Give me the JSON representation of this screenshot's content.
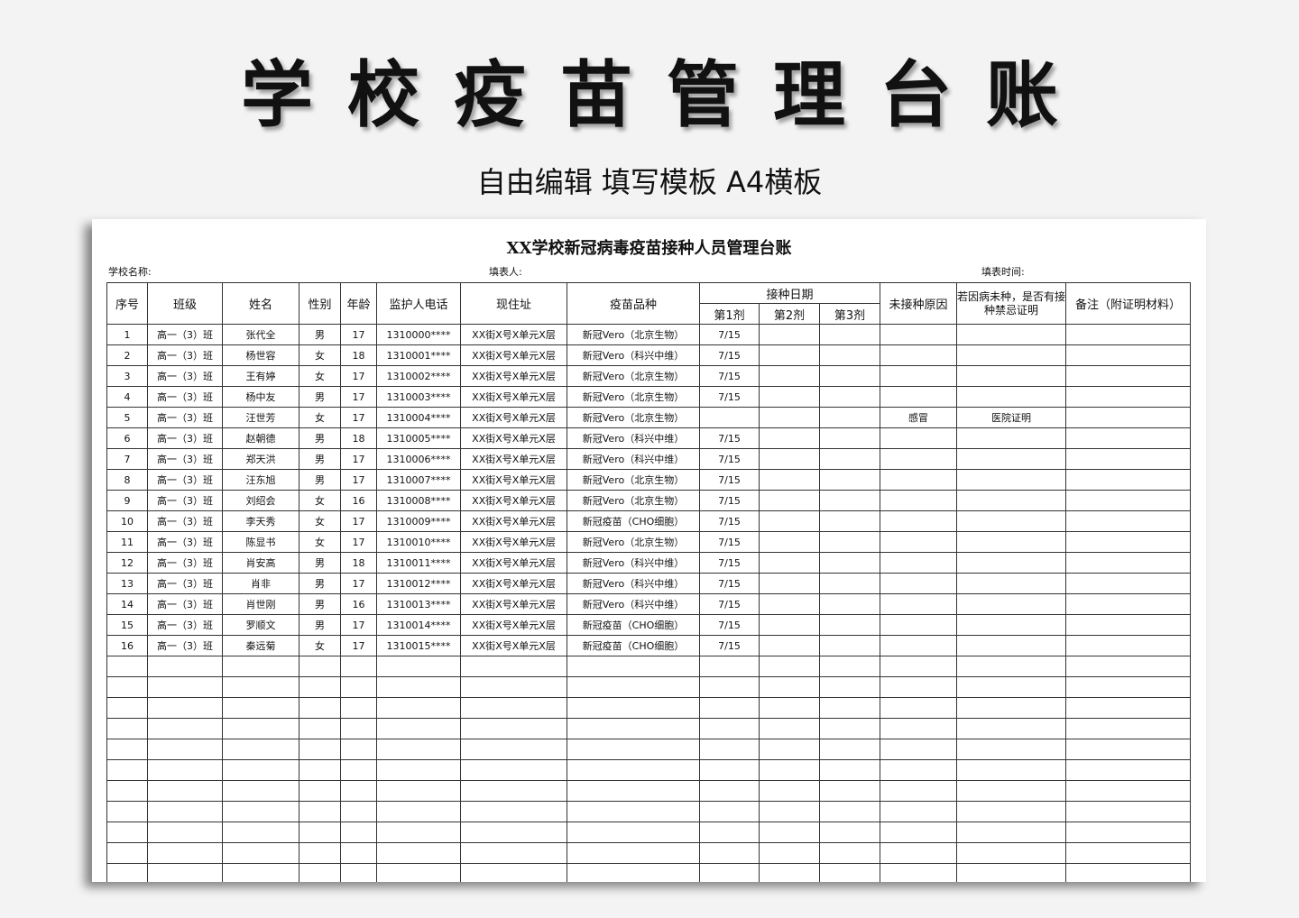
{
  "banner": {
    "title": "学校疫苗管理台账",
    "subtitle": "自由编辑  填写模板 A4横板"
  },
  "sheet": {
    "title": "XX学校新冠病毒疫苗接种人员管理台账",
    "school_label": "学校名称:",
    "filler_label": "填表人:",
    "time_label": "填表时间:",
    "headers": {
      "no": "序号",
      "class": "班级",
      "name": "姓名",
      "gender": "性别",
      "age": "年龄",
      "phone": "监护人电话",
      "address": "现住址",
      "vaccine": "疫苗品种",
      "date_group": "接种日期",
      "dose1": "第1剂",
      "dose2": "第2剂",
      "dose3": "第3剂",
      "reason": "未接种原因",
      "certificate": "若因病未种，是否有接种禁忌证明",
      "remark": "备注（附证明材料）"
    },
    "rows": [
      [
        "1",
        "高一（3）班",
        "张代全",
        "男",
        "17",
        "1310000****",
        "XX街X号X单元X层",
        "新冠Vero（北京生物）",
        "7/15",
        "",
        "",
        "",
        "",
        ""
      ],
      [
        "2",
        "高一（3）班",
        "杨世容",
        "女",
        "18",
        "1310001****",
        "XX街X号X单元X层",
        "新冠Vero（科兴中维）",
        "7/15",
        "",
        "",
        "",
        "",
        ""
      ],
      [
        "3",
        "高一（3）班",
        "王有婷",
        "女",
        "17",
        "1310002****",
        "XX街X号X单元X层",
        "新冠Vero（北京生物）",
        "7/15",
        "",
        "",
        "",
        "",
        ""
      ],
      [
        "4",
        "高一（3）班",
        "杨中友",
        "男",
        "17",
        "1310003****",
        "XX街X号X单元X层",
        "新冠Vero（北京生物）",
        "7/15",
        "",
        "",
        "",
        "",
        ""
      ],
      [
        "5",
        "高一（3）班",
        "汪世芳",
        "女",
        "17",
        "1310004****",
        "XX街X号X单元X层",
        "新冠Vero（北京生物）",
        "",
        "",
        "",
        "感冒",
        "医院证明",
        ""
      ],
      [
        "6",
        "高一（3）班",
        "赵朝德",
        "男",
        "18",
        "1310005****",
        "XX街X号X单元X层",
        "新冠Vero（科兴中维）",
        "7/15",
        "",
        "",
        "",
        "",
        ""
      ],
      [
        "7",
        "高一（3）班",
        "郑天洪",
        "男",
        "17",
        "1310006****",
        "XX街X号X单元X层",
        "新冠Vero（科兴中维）",
        "7/15",
        "",
        "",
        "",
        "",
        ""
      ],
      [
        "8",
        "高一（3）班",
        "汪东旭",
        "男",
        "17",
        "1310007****",
        "XX街X号X单元X层",
        "新冠Vero（北京生物）",
        "7/15",
        "",
        "",
        "",
        "",
        ""
      ],
      [
        "9",
        "高一（3）班",
        "刘绍会",
        "女",
        "16",
        "1310008****",
        "XX街X号X单元X层",
        "新冠Vero（北京生物）",
        "7/15",
        "",
        "",
        "",
        "",
        ""
      ],
      [
        "10",
        "高一（3）班",
        "李天秀",
        "女",
        "17",
        "1310009****",
        "XX街X号X单元X层",
        "新冠疫苗（CHO细胞）",
        "7/15",
        "",
        "",
        "",
        "",
        ""
      ],
      [
        "11",
        "高一（3）班",
        "陈显书",
        "女",
        "17",
        "1310010****",
        "XX街X号X单元X层",
        "新冠Vero（北京生物）",
        "7/15",
        "",
        "",
        "",
        "",
        ""
      ],
      [
        "12",
        "高一（3）班",
        "肖安高",
        "男",
        "18",
        "1310011****",
        "XX街X号X单元X层",
        "新冠Vero（科兴中维）",
        "7/15",
        "",
        "",
        "",
        "",
        ""
      ],
      [
        "13",
        "高一（3）班",
        "肖非",
        "男",
        "17",
        "1310012****",
        "XX街X号X单元X层",
        "新冠Vero（科兴中维）",
        "7/15",
        "",
        "",
        "",
        "",
        ""
      ],
      [
        "14",
        "高一（3）班",
        "肖世刚",
        "男",
        "16",
        "1310013****",
        "XX街X号X单元X层",
        "新冠Vero（科兴中维）",
        "7/15",
        "",
        "",
        "",
        "",
        ""
      ],
      [
        "15",
        "高一（3）班",
        "罗顺文",
        "男",
        "17",
        "1310014****",
        "XX街X号X单元X层",
        "新冠疫苗（CHO细胞）",
        "7/15",
        "",
        "",
        "",
        "",
        ""
      ],
      [
        "16",
        "高一（3）班",
        "秦远菊",
        "女",
        "17",
        "1310015****",
        "XX街X号X单元X层",
        "新冠疫苗（CHO细胞）",
        "7/15",
        "",
        "",
        "",
        "",
        ""
      ]
    ]
  }
}
